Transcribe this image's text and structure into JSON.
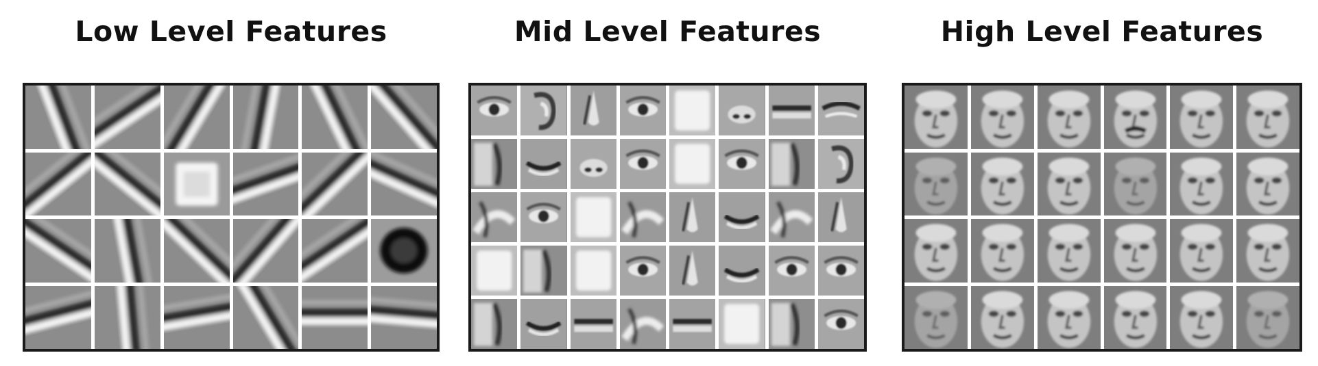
{
  "panels": [
    {
      "title": "Low Level Features",
      "rows": 4,
      "cols": 6,
      "kind": "edge",
      "tiles": [
        {
          "f": "edge",
          "a": 70
        },
        {
          "f": "edge",
          "a": -35
        },
        {
          "f": "edge",
          "a": -60
        },
        {
          "f": "edge",
          "a": -80
        },
        {
          "f": "edge",
          "a": 65
        },
        {
          "f": "edge",
          "a": 50
        },
        {
          "f": "edge",
          "a": -40
        },
        {
          "f": "edge",
          "a": 40
        },
        {
          "f": "blob-light"
        },
        {
          "f": "edge",
          "a": -20
        },
        {
          "f": "edge",
          "a": -45
        },
        {
          "f": "edge",
          "a": 25
        },
        {
          "f": "edge",
          "a": 35
        },
        {
          "f": "edge",
          "a": 80
        },
        {
          "f": "edge",
          "a": 45
        },
        {
          "f": "edge",
          "a": -50
        },
        {
          "f": "edge",
          "a": -35
        },
        {
          "f": "blob-dark"
        },
        {
          "f": "edge",
          "a": -15
        },
        {
          "f": "edge",
          "a": 85
        },
        {
          "f": "edge",
          "a": -10
        },
        {
          "f": "edge",
          "a": 60
        },
        {
          "f": "edge",
          "a": 0
        },
        {
          "f": "edge",
          "a": 5
        }
      ]
    },
    {
      "title": "Mid Level Features",
      "rows": 5,
      "cols": 8,
      "kind": "part",
      "tiles": [
        {
          "f": "eye"
        },
        {
          "f": "ear"
        },
        {
          "f": "nose"
        },
        {
          "f": "eye"
        },
        {
          "f": "blank-light"
        },
        {
          "f": "nostril"
        },
        {
          "f": "lip"
        },
        {
          "f": "brow"
        },
        {
          "f": "shadow"
        },
        {
          "f": "mouth"
        },
        {
          "f": "nostril"
        },
        {
          "f": "eye"
        },
        {
          "f": "blank-light"
        },
        {
          "f": "eye"
        },
        {
          "f": "shadow"
        },
        {
          "f": "ear"
        },
        {
          "f": "cheek"
        },
        {
          "f": "eye"
        },
        {
          "f": "blank-light"
        },
        {
          "f": "cheek"
        },
        {
          "f": "nose"
        },
        {
          "f": "mouth"
        },
        {
          "f": "cheek"
        },
        {
          "f": "nose"
        },
        {
          "f": "blank-light"
        },
        {
          "f": "shadow"
        },
        {
          "f": "blank-light"
        },
        {
          "f": "eye"
        },
        {
          "f": "nose"
        },
        {
          "f": "mouth"
        },
        {
          "f": "eye"
        },
        {
          "f": "eye"
        },
        {
          "f": "shadow"
        },
        {
          "f": "mouth"
        },
        {
          "f": "lip"
        },
        {
          "f": "cheek"
        },
        {
          "f": "lip"
        },
        {
          "f": "blank-light"
        },
        {
          "f": "shadow"
        },
        {
          "f": "eye"
        }
      ]
    },
    {
      "title": "High Level Features",
      "rows": 4,
      "cols": 6,
      "kind": "face",
      "tiles": [
        {
          "f": "face"
        },
        {
          "f": "face"
        },
        {
          "f": "face"
        },
        {
          "f": "face-mustache"
        },
        {
          "f": "face"
        },
        {
          "f": "face"
        },
        {
          "f": "face-faint"
        },
        {
          "f": "face"
        },
        {
          "f": "face"
        },
        {
          "f": "face-faint"
        },
        {
          "f": "face"
        },
        {
          "f": "face"
        },
        {
          "f": "face"
        },
        {
          "f": "face"
        },
        {
          "f": "face"
        },
        {
          "f": "face"
        },
        {
          "f": "face"
        },
        {
          "f": "face"
        },
        {
          "f": "face-faint"
        },
        {
          "f": "face"
        },
        {
          "f": "face"
        },
        {
          "f": "face"
        },
        {
          "f": "face"
        },
        {
          "f": "face-faint"
        }
      ]
    }
  ],
  "colors": {
    "frame": "#1a1a1a",
    "gap": "#ffffff",
    "tile_base": "#8a8a8a"
  }
}
